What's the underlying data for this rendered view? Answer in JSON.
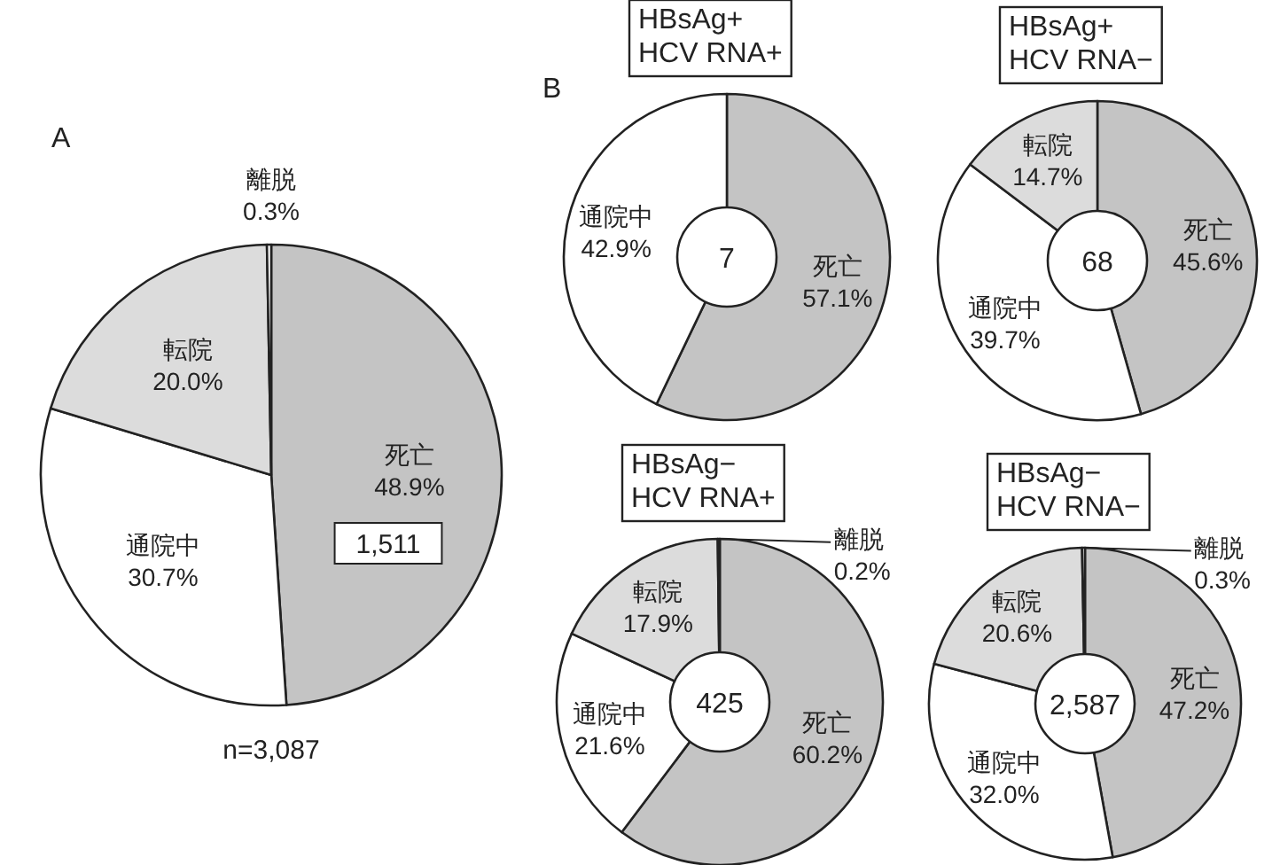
{
  "chart_data": [
    {
      "type": "pie",
      "title": "A",
      "categories": [
        "死亡",
        "通院中",
        "転院",
        "離脱"
      ],
      "values": [
        48.9,
        30.7,
        20.0,
        0.3
      ],
      "colors": [
        "#c4c4c4",
        "#ffffff",
        "#dcdcdc",
        "#ffffff"
      ],
      "value_labels": [
        "48.9%",
        "30.7%",
        "20.0%",
        "0.3%"
      ],
      "annotations": [
        "1,511",
        "n=3,087"
      ]
    },
    {
      "type": "donut",
      "subtitle": "B",
      "title": "HBsAg+\nHCV RNA+",
      "categories": [
        "死亡",
        "通院中"
      ],
      "values": [
        57.1,
        42.9
      ],
      "colors": [
        "#c4c4c4",
        "#ffffff"
      ],
      "value_labels": [
        "57.1%",
        "42.9%"
      ],
      "annotations": [
        "7"
      ]
    },
    {
      "type": "donut",
      "title": "HBsAg+\nHCV RNA−",
      "categories": [
        "死亡",
        "通院中",
        "転院"
      ],
      "values": [
        45.6,
        39.7,
        14.7
      ],
      "colors": [
        "#c4c4c4",
        "#ffffff",
        "#dcdcdc"
      ],
      "value_labels": [
        "45.6%",
        "39.7%",
        "14.7%"
      ],
      "annotations": [
        "68"
      ]
    },
    {
      "type": "donut",
      "title": "HBsAg−\nHCV RNA+",
      "categories": [
        "死亡",
        "通院中",
        "転院",
        "離脱"
      ],
      "values": [
        60.2,
        21.6,
        17.9,
        0.2
      ],
      "colors": [
        "#c4c4c4",
        "#ffffff",
        "#dcdcdc",
        "#ffffff"
      ],
      "value_labels": [
        "60.2%",
        "21.6%",
        "17.9%",
        "0.2%"
      ],
      "annotations": [
        "425"
      ]
    },
    {
      "type": "donut",
      "title": "HBsAg−\nHCV RNA−",
      "categories": [
        "死亡",
        "通院中",
        "転院",
        "離脱"
      ],
      "values": [
        47.2,
        32.0,
        20.6,
        0.3
      ],
      "colors": [
        "#c4c4c4",
        "#ffffff",
        "#dcdcdc",
        "#ffffff"
      ],
      "value_labels": [
        "47.2%",
        "32.0%",
        "20.6%",
        "0.3%"
      ],
      "annotations": [
        "2,587"
      ]
    }
  ]
}
